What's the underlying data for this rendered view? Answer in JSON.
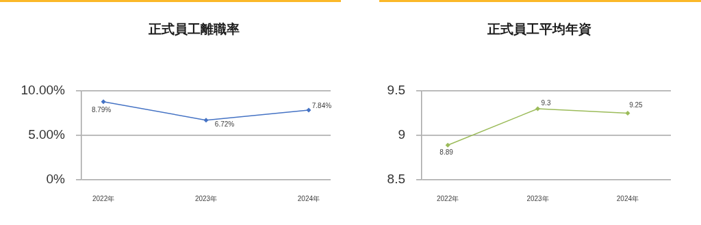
{
  "chart_data": [
    {
      "type": "line",
      "title": "正式員工離職率",
      "categories": [
        "2022年",
        "2023年",
        "2024年"
      ],
      "values": [
        8.79,
        6.72,
        7.84
      ],
      "value_labels": [
        "8.79%",
        "6.72%",
        "7.84%"
      ],
      "color": "#4472c4",
      "ylim": [
        0,
        10
      ],
      "yticks": [
        {
          "value": 0,
          "label": "0%"
        },
        {
          "value": 5,
          "label": "5.00%"
        },
        {
          "value": 10,
          "label": "10.00%"
        }
      ],
      "grid": "y",
      "marker": "diamond"
    },
    {
      "type": "line",
      "title": "正式員工平均年資",
      "categories": [
        "2022年",
        "2023年",
        "2024年"
      ],
      "values": [
        8.89,
        9.3,
        9.25
      ],
      "data_labels": true,
      "color": "#9bbb59",
      "ylim": [
        8.5,
        9.5
      ],
      "yticks": [
        8.5,
        9,
        9.5
      ],
      "grid": "y",
      "marker": "diamond"
    }
  ]
}
